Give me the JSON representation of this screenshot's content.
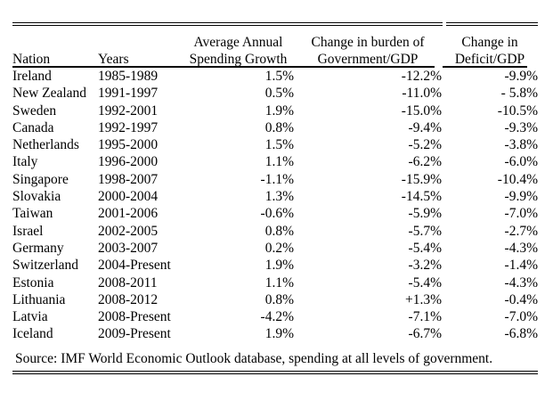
{
  "page": {
    "background": "#ffffff",
    "text_color": "#000000"
  },
  "table": {
    "header": {
      "nation": "Nation",
      "years": "Years",
      "spending_line1": "Average Annual",
      "spending_line2": "Spending Growth",
      "burden_line1": "Change in burden of",
      "burden_line2": "Government/GDP",
      "deficit_line1": "Change in",
      "deficit_line2": "Deficit/GDP"
    },
    "rows": [
      {
        "nation": "Ireland",
        "years": "1985-1989",
        "spending_growth": "1.5%",
        "burden_change": "-12.2%",
        "deficit_change": "-9.9%"
      },
      {
        "nation": "New Zealand",
        "years": "1991-1997",
        "spending_growth": "0.5%",
        "burden_change": "-11.0%",
        "deficit_change": "- 5.8%"
      },
      {
        "nation": "Sweden",
        "years": "1992-2001",
        "spending_growth": "1.9%",
        "burden_change": "-15.0%",
        "deficit_change": "-10.5%"
      },
      {
        "nation": "Canada",
        "years": "1992-1997",
        "spending_growth": "0.8%",
        "burden_change": "-9.4%",
        "deficit_change": "-9.3%"
      },
      {
        "nation": "Netherlands",
        "years": "1995-2000",
        "spending_growth": "1.5%",
        "burden_change": "-5.2%",
        "deficit_change": "-3.8%"
      },
      {
        "nation": "Italy",
        "years": "1996-2000",
        "spending_growth": "1.1%",
        "burden_change": "-6.2%",
        "deficit_change": "-6.0%"
      },
      {
        "nation": "Singapore",
        "years": "1998-2007",
        "spending_growth": "-1.1%",
        "burden_change": "-15.9%",
        "deficit_change": "-10.4%"
      },
      {
        "nation": "Slovakia",
        "years": "2000-2004",
        "spending_growth": "1.3%",
        "burden_change": "-14.5%",
        "deficit_change": "-9.9%"
      },
      {
        "nation": "Taiwan",
        "years": "2001-2006",
        "spending_growth": "-0.6%",
        "burden_change": "-5.9%",
        "deficit_change": "-7.0%"
      },
      {
        "nation": "Israel",
        "years": "2002-2005",
        "spending_growth": "0.8%",
        "burden_change": "-5.7%",
        "deficit_change": "-2.7%"
      },
      {
        "nation": "Germany",
        "years": "2003-2007",
        "spending_growth": "0.2%",
        "burden_change": "-5.4%",
        "deficit_change": "-4.3%"
      },
      {
        "nation": "Switzerland",
        "years": "2004-Present",
        "spending_growth": "1.9%",
        "burden_change": "-3.2%",
        "deficit_change": "-1.4%"
      },
      {
        "nation": "Estonia",
        "years": "2008-2011",
        "spending_growth": "1.1%",
        "burden_change": "-5.4%",
        "deficit_change": "-4.3%"
      },
      {
        "nation": "Lithuania",
        "years": "2008-2012",
        "spending_growth": "0.8%",
        "burden_change": "+1.3%",
        "deficit_change": "-0.4%"
      },
      {
        "nation": "Latvia",
        "years": "2008-Present",
        "spending_growth": "-4.2%",
        "burden_change": "-7.1%",
        "deficit_change": "-7.0%"
      },
      {
        "nation": "Iceland",
        "years": "2009-Present",
        "spending_growth": "1.9%",
        "burden_change": "-6.7%",
        "deficit_change": "-6.8%"
      }
    ],
    "source": "Source: IMF World Economic Outlook database, spending at all levels of government."
  }
}
